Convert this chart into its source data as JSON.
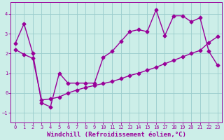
{
  "xlabel": "Windchill (Refroidissement éolien,°C)",
  "bg_color": "#cceee8",
  "line_color": "#990099",
  "grid_color": "#99cccc",
  "xlim": [
    -0.5,
    23.5
  ],
  "ylim": [
    -1.5,
    4.6
  ],
  "xticks": [
    0,
    1,
    2,
    3,
    4,
    5,
    6,
    7,
    8,
    9,
    10,
    11,
    12,
    13,
    14,
    15,
    16,
    17,
    18,
    19,
    20,
    21,
    22,
    23
  ],
  "yticks": [
    -1,
    0,
    1,
    2,
    3,
    4
  ],
  "series1_x": [
    0,
    1,
    2,
    3,
    4,
    5,
    6,
    7,
    8,
    9,
    10,
    11,
    12,
    13,
    14,
    15,
    16,
    17,
    18,
    19,
    20,
    21,
    22,
    23
  ],
  "series1_y": [
    2.5,
    3.5,
    2.0,
    -0.5,
    -0.7,
    1.0,
    0.5,
    0.5,
    0.5,
    0.5,
    1.8,
    2.1,
    2.6,
    3.1,
    3.2,
    3.1,
    4.2,
    2.9,
    3.9,
    3.9,
    3.6,
    3.8,
    2.1,
    1.4
  ],
  "series2_x": [
    0,
    1,
    2,
    3,
    4,
    5,
    6,
    7,
    8,
    9,
    10,
    11,
    12,
    13,
    14,
    15,
    16,
    17,
    18,
    19,
    20,
    21,
    22,
    23
  ],
  "series2_y": [
    2.2,
    1.95,
    1.75,
    -0.35,
    -0.3,
    -0.2,
    0.0,
    0.15,
    0.28,
    0.38,
    0.48,
    0.58,
    0.72,
    0.88,
    1.0,
    1.15,
    1.3,
    1.48,
    1.65,
    1.82,
    2.0,
    2.15,
    2.55,
    2.85
  ],
  "marker": "D",
  "markersize": 2.5,
  "linewidth": 1.0,
  "xlabel_fontsize": 6.5,
  "tick_fontsize": 5.0
}
